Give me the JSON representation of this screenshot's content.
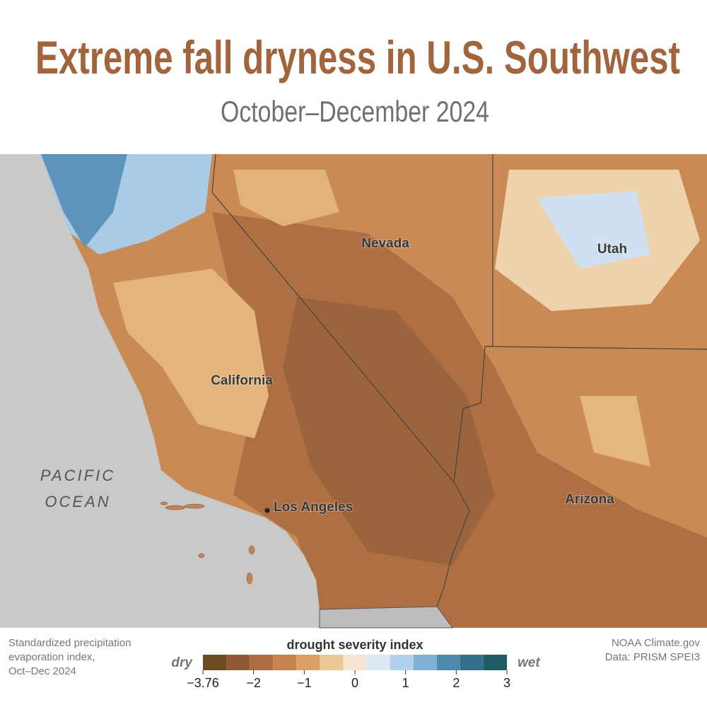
{
  "header": {
    "title": "Extreme fall dryness in U.S. Southwest",
    "subtitle": "October–December 2024"
  },
  "map": {
    "labels": [
      "Nevada",
      "Utah",
      "California",
      "Los Angeles",
      "Arizona"
    ],
    "ocean": [
      "PACIFIC",
      "OCEAN"
    ]
  },
  "legend": {
    "title": "drought severity index",
    "dry": "dry",
    "wet": "wet",
    "colors": [
      "#6e4b24",
      "#8f5a35",
      "#ad6c42",
      "#c6834f",
      "#dc9f64",
      "#ecc796",
      "#f4e6d2",
      "#dce9f4",
      "#b1d1ec",
      "#7fb0d6",
      "#4f88ad",
      "#336f8c",
      "#1f5c66"
    ],
    "ticks": [
      {
        "value": -3.76,
        "label": "−3.76"
      },
      {
        "value": -2,
        "label": "−2"
      },
      {
        "value": -1,
        "label": "−1"
      },
      0,
      1,
      2,
      3
    ]
  },
  "notes": {
    "left": [
      "Standardized precipitation",
      "evaporation index,",
      "Oct–Dec 2024"
    ],
    "right": [
      "NOAA Climate.gov",
      "Data: PRISM SPEI3"
    ]
  }
}
